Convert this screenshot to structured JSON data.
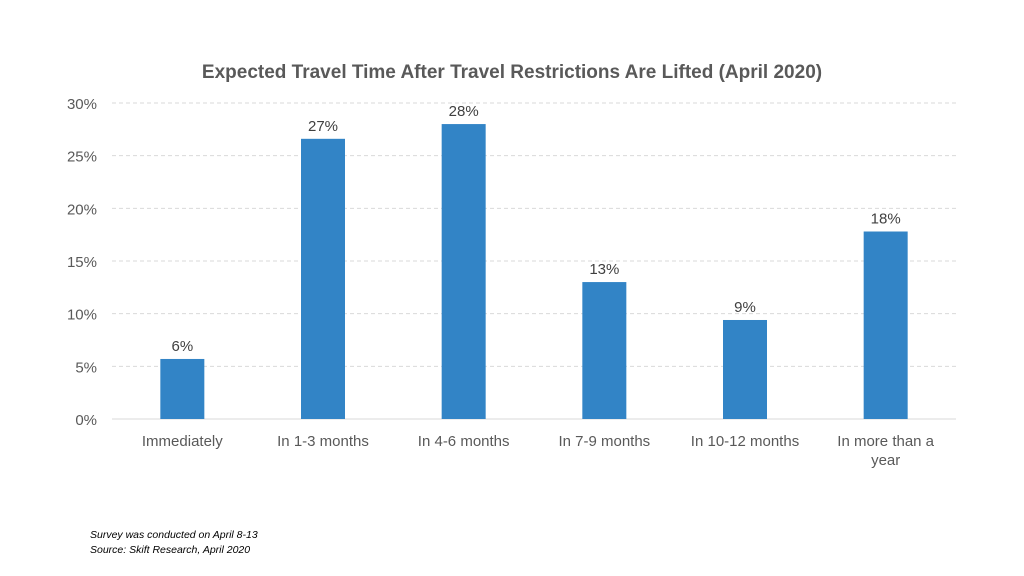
{
  "chart_data": {
    "type": "bar",
    "title": "Expected Travel Time After Travel Restrictions Are Lifted (April 2020)",
    "categories": [
      "Immediately",
      "In 1-3 months",
      "In 4-6 months",
      "In 7-9 months",
      "In 10-12 months",
      "In more than a year"
    ],
    "category_lines": [
      [
        "Immediately"
      ],
      [
        "In 1-3 months"
      ],
      [
        "In 4-6 months"
      ],
      [
        "In 7-9 months"
      ],
      [
        "In 10-12 months"
      ],
      [
        "In more than a",
        "year"
      ]
    ],
    "values": [
      5.7,
      26.6,
      28.0,
      13.0,
      9.4,
      17.8
    ],
    "data_labels": [
      "6%",
      "27%",
      "28%",
      "13%",
      "9%",
      "18%"
    ],
    "ylim": [
      0,
      30
    ],
    "yticks": [
      0,
      5,
      10,
      15,
      20,
      25,
      30
    ],
    "ytick_labels": [
      "0%",
      "5%",
      "10%",
      "15%",
      "20%",
      "25%",
      "30%"
    ],
    "xlabel": "",
    "ylabel": "",
    "grid": true,
    "legend": "none",
    "bar_color": "#3284c6"
  },
  "notes": {
    "survey": "Survey was conducted on April 8-13",
    "source": "Source: Skift Research, April 2020"
  }
}
